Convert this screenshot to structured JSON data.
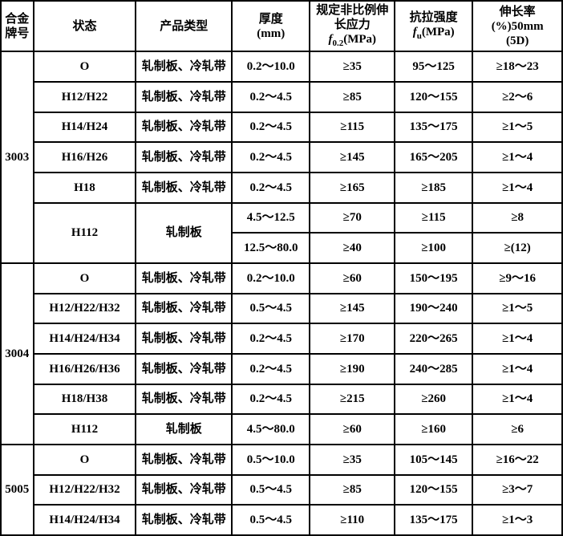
{
  "headers": {
    "alloy": "合金牌号",
    "state": "状态",
    "product_type": "产品类型",
    "thickness": "厚度\n(mm)",
    "f02": "规定非比例伸长应力",
    "f02_sym": "f",
    "f02_sub": "0.2",
    "f02_unit": "(MPa)",
    "fu": "抗拉强度",
    "fu_sym": "f",
    "fu_sub": "u",
    "fu_unit": "(MPa)",
    "elong": "伸长率\n(%)50mm\n(5D)"
  },
  "rows": [
    {
      "alloy": "3003",
      "state": "O",
      "type": "轧制板、冷轧带",
      "thick": "0.2～10.0",
      "f02": "≥35",
      "fu": "95～125",
      "elong": "≥18～23"
    },
    {
      "alloy": "",
      "state": "H12/H22",
      "type": "轧制板、冷轧带",
      "thick": "0.2～4.5",
      "f02": "≥85",
      "fu": "120～155",
      "elong": "≥2～6"
    },
    {
      "alloy": "",
      "state": "H14/H24",
      "type": "轧制板、冷轧带",
      "thick": "0.2～4.5",
      "f02": "≥115",
      "fu": "135～175",
      "elong": "≥1～5"
    },
    {
      "alloy": "",
      "state": "H16/H26",
      "type": "轧制板、冷轧带",
      "thick": "0.2～4.5",
      "f02": "≥145",
      "fu": "165～205",
      "elong": "≥1～4"
    },
    {
      "alloy": "",
      "state": "H18",
      "type": "轧制板、冷轧带",
      "thick": "0.2～4.5",
      "f02": "≥165",
      "fu": "≥185",
      "elong": "≥1～4"
    },
    {
      "alloy": "",
      "state": "H112",
      "type": "轧制板",
      "thick": "4.5～12.5",
      "f02": "≥70",
      "fu": "≥115",
      "elong": "≥8"
    },
    {
      "alloy": "",
      "state": "",
      "type": "",
      "thick": "12.5～80.0",
      "f02": "≥40",
      "fu": "≥100",
      "elong": "≥(12)"
    },
    {
      "alloy": "3004",
      "state": "O",
      "type": "轧制板、冷轧带",
      "thick": "0.2～10.0",
      "f02": "≥60",
      "fu": "150～195",
      "elong": "≥9～16"
    },
    {
      "alloy": "",
      "state": "H12/H22/H32",
      "type": "轧制板、冷轧带",
      "thick": "0.5～4.5",
      "f02": "≥145",
      "fu": "190～240",
      "elong": "≥1～5"
    },
    {
      "alloy": "",
      "state": "H14/H24/H34",
      "type": "轧制板、冷轧带",
      "thick": "0.2～4.5",
      "f02": "≥170",
      "fu": "220～265",
      "elong": "≥1～4"
    },
    {
      "alloy": "",
      "state": "H16/H26/H36",
      "type": "轧制板、冷轧带",
      "thick": "0.2～4.5",
      "f02": "≥190",
      "fu": "240～285",
      "elong": "≥1～4"
    },
    {
      "alloy": "",
      "state": "H18/H38",
      "type": "轧制板、冷轧带",
      "thick": "0.2～4.5",
      "f02": "≥215",
      "fu": "≥260",
      "elong": "≥1～4"
    },
    {
      "alloy": "",
      "state": "H112",
      "type": "轧制板",
      "thick": "4.5～80.0",
      "f02": "≥60",
      "fu": "≥160",
      "elong": "≥6"
    },
    {
      "alloy": "5005",
      "state": "O",
      "type": "轧制板、冷轧带",
      "thick": "0.5～10.0",
      "f02": "≥35",
      "fu": "105～145",
      "elong": "≥16～22"
    },
    {
      "alloy": "",
      "state": "H12/H22/H32",
      "type": "轧制板、冷轧带",
      "thick": "0.5～4.5",
      "f02": "≥85",
      "fu": "120～155",
      "elong": "≥3～7"
    },
    {
      "alloy": "",
      "state": "H14/H24/H34",
      "type": "轧制板、冷轧带",
      "thick": "0.5～4.5",
      "f02": "≥110",
      "fu": "135～175",
      "elong": "≥1～3"
    }
  ],
  "alloy_spans": {
    "3003": 7,
    "3004": 6,
    "5005": 3
  },
  "h112_span_state": 2,
  "h112_span_type": 2,
  "alloy_label": {
    "0": "3003",
    "7": "3004",
    "13": "5005"
  }
}
